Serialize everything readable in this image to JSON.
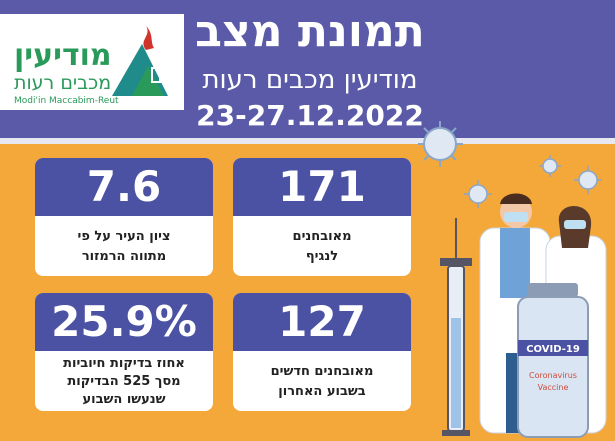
{
  "header": {
    "title": "תמונת מצב",
    "subtitle": "מודיעין מכבים רעות",
    "date_range": "23-27.12.2022"
  },
  "logo": {
    "name": "מודיעין",
    "sub": "מכבים רעות",
    "en": "Modi'in Maccabim-Reut"
  },
  "cards": {
    "city_score": {
      "value": "7.6",
      "label_line1": "ציון העיר על פי",
      "label_line2": "מתווה הרמזור"
    },
    "active_patients": {
      "value": "171",
      "label_line1": "מאובחנים",
      "label_line2": "לנגיף"
    },
    "positive_pct": {
      "value": "25.9%",
      "label_line1": "אחוז בדיקות חיוביות",
      "label_line2": "מסך 525 הבדיקות",
      "label_line3": "שנעשו השבוע"
    },
    "new_patients": {
      "value": "127",
      "label_line1": "מאובחנים חדשים",
      "label_line2": "בשבוע האחרון"
    }
  },
  "vial": {
    "top": "COVID-19",
    "name": "Coronavirus",
    "name2": "Vaccine"
  },
  "colors": {
    "brand_purple": "#4b52a3",
    "orange": "#f5a83a",
    "logo_green": "#2a9a5a"
  },
  "icons": {
    "virus": "virus-icon",
    "syringe": "syringe-icon",
    "vial": "vaccine-vial-icon",
    "doctor": "doctor-icon",
    "nurse": "nurse-icon"
  }
}
